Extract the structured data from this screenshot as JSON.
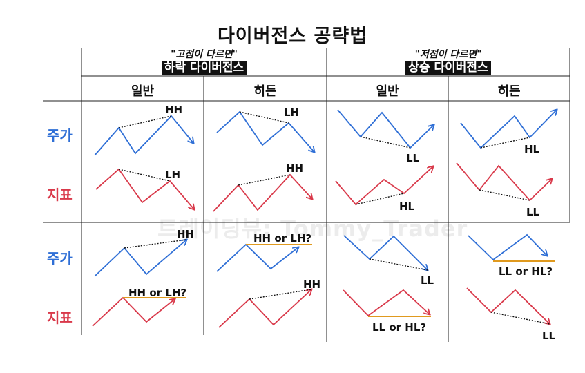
{
  "title": "다이버전스 공략법",
  "watermark": "트레이딩뷰: Tommy_Trader",
  "sections": {
    "bearish": {
      "quote": "\"고점이 다르면\"",
      "label": "하락 다이버전스"
    },
    "bullish": {
      "quote": "\"저점이 다르면\"",
      "label": "상승 다이버전스"
    }
  },
  "columns": [
    "일반",
    "히든",
    "일반",
    "히든"
  ],
  "rows": {
    "price": "주가",
    "indicator": "지표"
  },
  "row_labels": [
    {
      "price": "주가",
      "indicator": "지표"
    },
    {
      "price": "주가",
      "indicator": "지표"
    }
  ],
  "cells": {
    "r1c1_price": "HH",
    "r1c1_ind": "LH",
    "r1c2_price": "LH",
    "r1c2_ind": "HH",
    "r1c3_price": "LL",
    "r1c3_ind": "HL",
    "r1c4_price": "HL",
    "r1c4_ind": "LL",
    "r2c1_price": "HH",
    "r2c1_ind": "HH or LH?",
    "r2c2_price": "HH or LH?",
    "r2c2_ind": "HH",
    "r2c3_price": "LL",
    "r2c3_ind": "LL or HL?",
    "r2c4_price": "LL or HL?",
    "r2c4_ind": "LL"
  },
  "colors": {
    "price_line": "#2f6fd6",
    "indicator_line": "#d9394a",
    "level_line": "#e09a1f",
    "grid": "#222222"
  }
}
